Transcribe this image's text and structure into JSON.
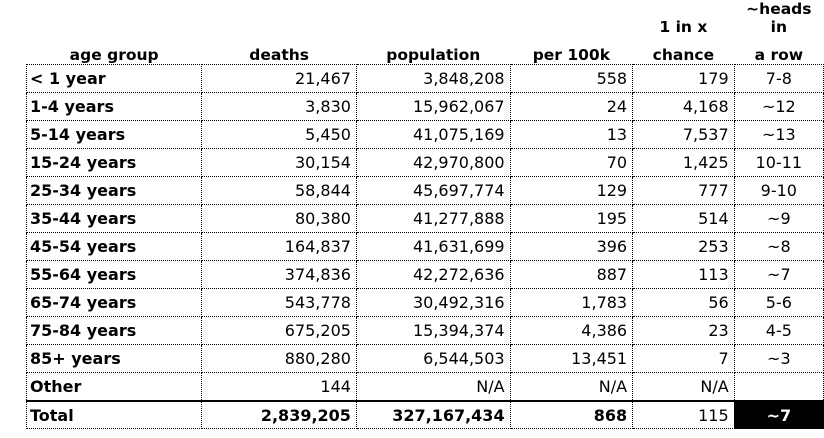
{
  "header": {
    "top": [
      "",
      "",
      "",
      "",
      "1 in x",
      "~heads in"
    ],
    "bottom": [
      "age group",
      "deaths",
      "population",
      "per 100k",
      "chance",
      "a row"
    ]
  },
  "rows": [
    {
      "age": "< 1 year",
      "deaths": "21,467",
      "population": "3,848,208",
      "per100k": "558",
      "chance": "179",
      "heads": "7-8"
    },
    {
      "age": "1-4 years",
      "deaths": "3,830",
      "population": "15,962,067",
      "per100k": "24",
      "chance": "4,168",
      "heads": "~12"
    },
    {
      "age": "5-14 years",
      "deaths": "5,450",
      "population": "41,075,169",
      "per100k": "13",
      "chance": "7,537",
      "heads": "~13"
    },
    {
      "age": "15-24 years",
      "deaths": "30,154",
      "population": "42,970,800",
      "per100k": "70",
      "chance": "1,425",
      "heads": "10-11"
    },
    {
      "age": "25-34 years",
      "deaths": "58,844",
      "population": "45,697,774",
      "per100k": "129",
      "chance": "777",
      "heads": "9-10"
    },
    {
      "age": "35-44 years",
      "deaths": "80,380",
      "population": "41,277,888",
      "per100k": "195",
      "chance": "514",
      "heads": "~9"
    },
    {
      "age": "45-54 years",
      "deaths": "164,837",
      "population": "41,631,699",
      "per100k": "396",
      "chance": "253",
      "heads": "~8"
    },
    {
      "age": "55-64 years",
      "deaths": "374,836",
      "population": "42,272,636",
      "per100k": "887",
      "chance": "113",
      "heads": "~7"
    },
    {
      "age": "65-74 years",
      "deaths": "543,778",
      "population": "30,492,316",
      "per100k": "1,783",
      "chance": "56",
      "heads": "5-6"
    },
    {
      "age": "75-84 years",
      "deaths": "675,205",
      "population": "15,394,374",
      "per100k": "4,386",
      "chance": "23",
      "heads": "4-5"
    },
    {
      "age": "85+ years",
      "deaths": "880,280",
      "population": "6,544,503",
      "per100k": "13,451",
      "chance": "7",
      "heads": "~3"
    },
    {
      "age": "Other",
      "deaths": "144",
      "population": "N/A",
      "per100k": "N/A",
      "chance": "N/A",
      "heads": ""
    }
  ],
  "total": {
    "age": "Total",
    "deaths": "2,839,205",
    "population": "327,167,434",
    "per100k": "868",
    "chance": "115",
    "heads": "~7"
  },
  "colors": {
    "highlight_bg": "#000000",
    "highlight_fg": "#ffffff"
  }
}
